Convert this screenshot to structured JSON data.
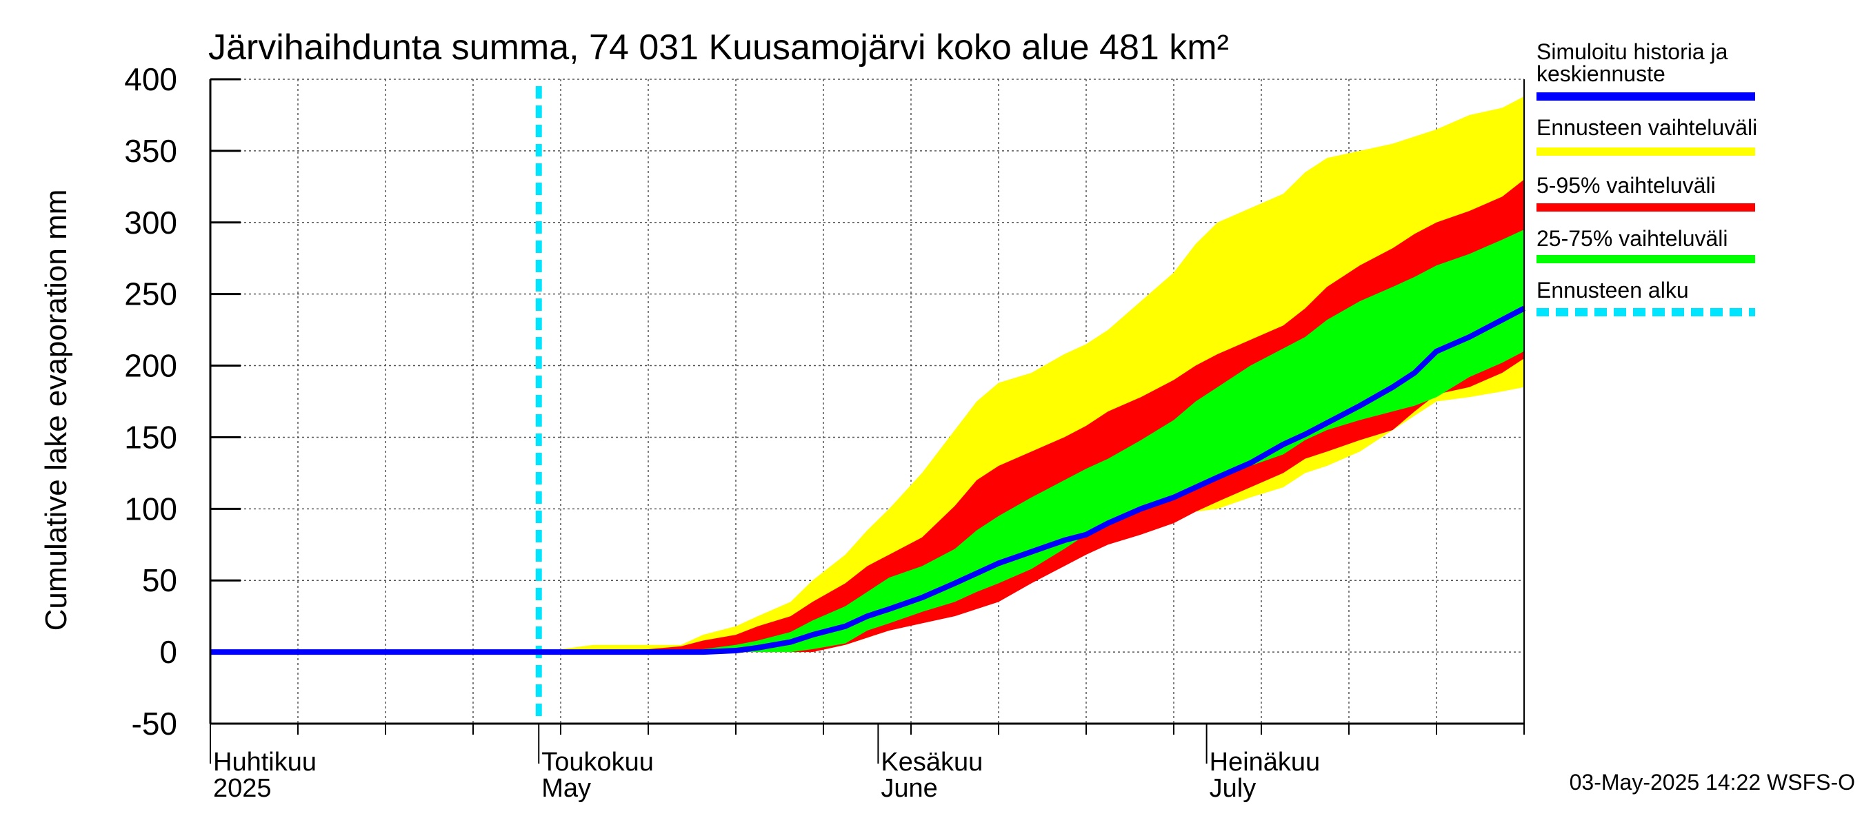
{
  "chart_data": {
    "type": "area",
    "title": "Järvihaihdunta summa, 74 031 Kuusamojärvi koko alue 481 km²",
    "ylabel": "Cumulative lake evaporation   mm",
    "ylim": [
      -50,
      400
    ],
    "yticks": [
      -50,
      0,
      50,
      100,
      150,
      200,
      250,
      300,
      350,
      400
    ],
    "x_domain_days": [
      0,
      120
    ],
    "x_unit": "days since 2025-04-01",
    "month_labels": [
      {
        "day": 0,
        "fi": "Huhtikuu",
        "en": "2025"
      },
      {
        "day": 30,
        "fi": "Toukokuu",
        "en": "May"
      },
      {
        "day": 61,
        "fi": "Kesäkuu",
        "en": "June"
      },
      {
        "day": 91,
        "fi": "Heinäkuu",
        "en": "July"
      }
    ],
    "forecast_start_day": 30,
    "x": [
      0,
      10,
      20,
      30,
      32,
      35,
      40,
      43,
      45,
      48,
      50,
      53,
      55,
      58,
      60,
      62,
      65,
      68,
      70,
      72,
      75,
      78,
      80,
      82,
      85,
      88,
      90,
      92,
      95,
      98,
      100,
      102,
      105,
      108,
      110,
      112,
      115,
      118,
      120
    ],
    "series": [
      {
        "name": "Ennusteen vaihteluväli max",
        "color": "#ffff00",
        "values": [
          0,
          0,
          0,
          0,
          2,
          5,
          5,
          5,
          12,
          18,
          25,
          35,
          50,
          68,
          85,
          100,
          125,
          155,
          175,
          188,
          195,
          208,
          215,
          225,
          245,
          265,
          285,
          300,
          310,
          320,
          335,
          345,
          350,
          355,
          360,
          365,
          375,
          380,
          388
        ]
      },
      {
        "name": "Ennusteen vaihteluväli min",
        "color": "#ffff00",
        "values": [
          0,
          0,
          0,
          0,
          0,
          0,
          0,
          0,
          0,
          0,
          0,
          0,
          0,
          5,
          10,
          15,
          22,
          30,
          40,
          50,
          60,
          70,
          75,
          82,
          90,
          95,
          98,
          100,
          108,
          115,
          125,
          130,
          140,
          155,
          165,
          175,
          178,
          182,
          185
        ]
      },
      {
        "name": "5-95% vaihteluväli max",
        "color": "#ff0000",
        "values": [
          0,
          0,
          0,
          0,
          0,
          0,
          2,
          4,
          8,
          12,
          18,
          25,
          35,
          48,
          60,
          68,
          80,
          102,
          120,
          130,
          140,
          150,
          158,
          168,
          178,
          190,
          200,
          208,
          218,
          228,
          240,
          255,
          270,
          282,
          292,
          300,
          308,
          318,
          330
        ]
      },
      {
        "name": "5-95% vaihteluväli min",
        "color": "#ff0000",
        "values": [
          0,
          0,
          0,
          0,
          0,
          0,
          0,
          0,
          0,
          0,
          0,
          0,
          0,
          5,
          10,
          15,
          20,
          25,
          30,
          35,
          48,
          60,
          68,
          75,
          82,
          90,
          98,
          105,
          115,
          125,
          135,
          140,
          148,
          155,
          168,
          180,
          185,
          195,
          205
        ]
      },
      {
        "name": "25-75% vaihteluväli max",
        "color": "#00ff00",
        "values": [
          0,
          0,
          0,
          0,
          0,
          0,
          0,
          0,
          2,
          5,
          8,
          14,
          22,
          32,
          42,
          52,
          60,
          72,
          85,
          95,
          108,
          120,
          128,
          135,
          148,
          162,
          175,
          185,
          200,
          212,
          220,
          232,
          245,
          255,
          262,
          270,
          278,
          288,
          295
        ]
      },
      {
        "name": "25-75% vaihteluväli min",
        "color": "#00ff00",
        "values": [
          0,
          0,
          0,
          0,
          0,
          0,
          0,
          0,
          0,
          0,
          0,
          0,
          2,
          6,
          15,
          20,
          28,
          35,
          42,
          48,
          58,
          72,
          82,
          90,
          98,
          108,
          115,
          122,
          130,
          138,
          148,
          155,
          162,
          168,
          172,
          178,
          192,
          202,
          210
        ]
      },
      {
        "name": "Simuloitu historia ja keskiennuste",
        "color": "#0000ff",
        "values": [
          0,
          0,
          0,
          0,
          0,
          0,
          0,
          0,
          0,
          1,
          3,
          7,
          12,
          18,
          25,
          30,
          38,
          48,
          55,
          62,
          70,
          78,
          82,
          90,
          100,
          108,
          115,
          122,
          132,
          145,
          152,
          160,
          172,
          185,
          195,
          210,
          220,
          232,
          240
        ]
      }
    ],
    "legend": [
      {
        "label": "Simuloitu historia ja keskiennuste",
        "color": "#0000ff",
        "style": "solid"
      },
      {
        "label": "Ennusteen vaihteluväli",
        "color": "#ffff00",
        "style": "solid"
      },
      {
        "label": "5-95% vaihteluväli",
        "color": "#ff0000",
        "style": "solid"
      },
      {
        "label": "25-75% vaihteluväli",
        "color": "#00ff00",
        "style": "solid"
      },
      {
        "label": "Ennusteen alku",
        "color": "#00e5ff",
        "style": "dashed"
      }
    ],
    "legend_position": "right",
    "grid": true,
    "footer": "03-May-2025 14:22 WSFS-O"
  }
}
